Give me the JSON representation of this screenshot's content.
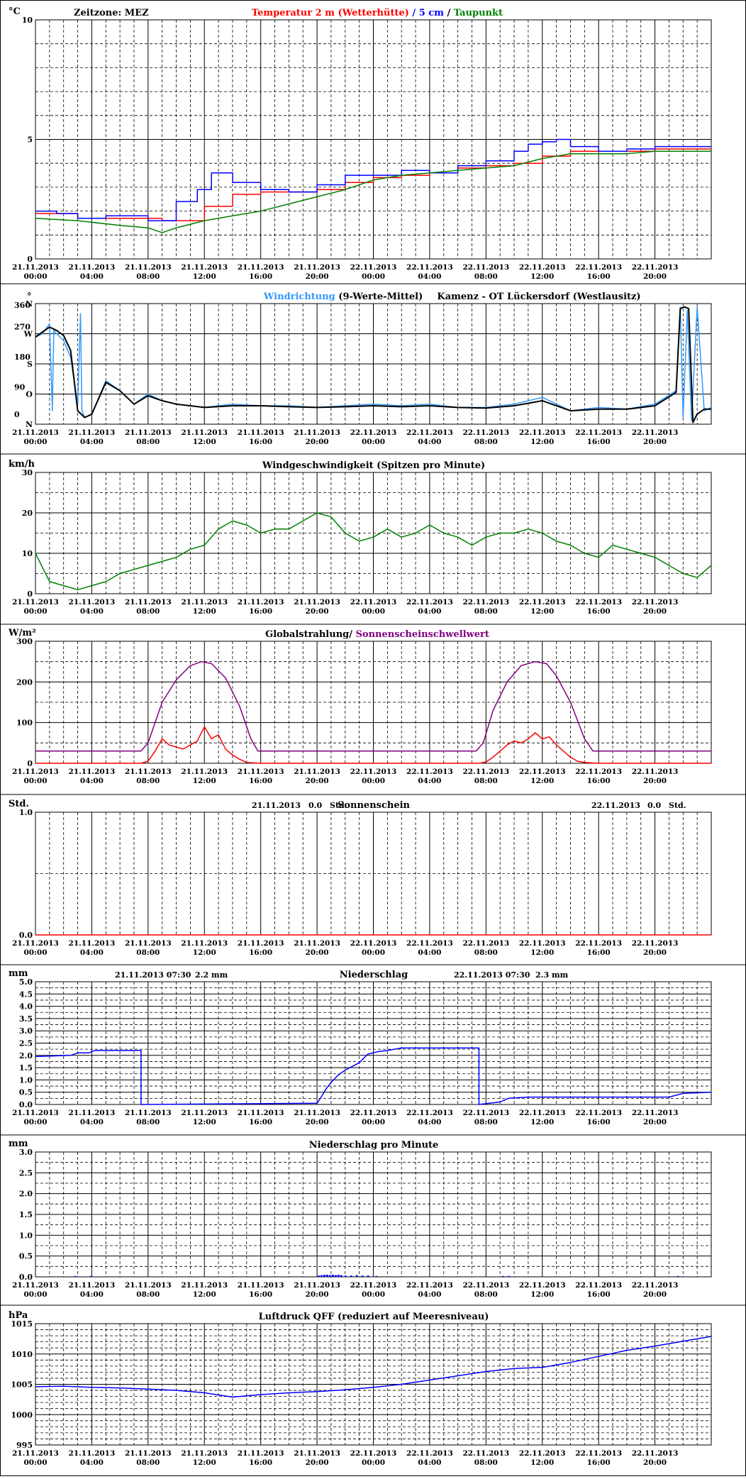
{
  "x_tick_labels": [
    [
      "21.11.2013",
      "00:00"
    ],
    [
      "21.11.2013",
      "04:00"
    ],
    [
      "21.11.2013",
      "08:00"
    ],
    [
      "21.11.2013",
      "12:00"
    ],
    [
      "21.11.2013",
      "16:00"
    ],
    [
      "21.11.2013",
      "20:00"
    ],
    [
      "22.11.2013",
      "00:00"
    ],
    [
      "22.11.2013",
      "04:00"
    ],
    [
      "22.11.2013",
      "08:00"
    ],
    [
      "22.11.2013",
      "12:00"
    ],
    [
      "22.11.2013",
      "16:00"
    ],
    [
      "22.11.2013",
      "20:00"
    ]
  ],
  "colors": {
    "temp_red": "#ff0000",
    "temp_blue": "#0000ff",
    "dew_green": "#008000",
    "wind_dir_blue": "#3399ff",
    "wind_dir_black": "#000000",
    "wind_speed": "#008000",
    "radiation": "#ff0000",
    "threshold": "#800080",
    "sunshine": "#ff0000",
    "precip": "#0000ff",
    "pressure": "#0000ff"
  },
  "chart_data": [
    {
      "id": "temperature",
      "type": "line",
      "unit": "°C",
      "zone_label": "Zeitzone: MEZ",
      "title_parts": [
        {
          "text": "Temperatur 2 m (Wetterhütte)",
          "color": "#ff0000"
        },
        {
          "text": "  /  ",
          "color": "#0000ff"
        },
        {
          "text": "5 cm",
          "color": "#0000ff"
        },
        {
          "text": " / ",
          "color": "#000000"
        },
        {
          "text": "Taupunkt",
          "color": "#008000"
        }
      ],
      "ylim": [
        0,
        10
      ],
      "y_ticks": [
        "0",
        "5",
        "10"
      ],
      "y_tick_values": [
        0,
        5,
        10
      ],
      "grid_minor": [
        1,
        2,
        3,
        4,
        6,
        7,
        8,
        9
      ],
      "x_hours": [
        0,
        48
      ],
      "series": [
        {
          "name": "Temperatur 2 m (Wetterhütte)",
          "color": "#ff0000",
          "step": true,
          "x": [
            0,
            3,
            6,
            9,
            12,
            14,
            16,
            18,
            20,
            22,
            24,
            26,
            28,
            30,
            32,
            34,
            36,
            38,
            40,
            42,
            44,
            46,
            48
          ],
          "y": [
            1.9,
            1.7,
            1.7,
            1.6,
            2.2,
            2.7,
            2.8,
            2.8,
            2.9,
            3.2,
            3.4,
            3.5,
            3.6,
            3.8,
            3.9,
            4.0,
            4.3,
            4.5,
            4.5,
            4.5,
            4.6,
            4.6,
            4.6
          ]
        },
        {
          "name": "5 cm",
          "color": "#0000ff",
          "step": true,
          "x": [
            0,
            1.5,
            3,
            5,
            8,
            10,
            11.5,
            12.5,
            14,
            16,
            18,
            20,
            22,
            24,
            26,
            28,
            30,
            32,
            34,
            35,
            36,
            37,
            38,
            40,
            42,
            44,
            46,
            48
          ],
          "y": [
            2.0,
            1.9,
            1.7,
            1.8,
            1.6,
            2.4,
            2.9,
            3.6,
            3.2,
            2.9,
            2.8,
            3.1,
            3.5,
            3.5,
            3.7,
            3.6,
            3.9,
            4.1,
            4.5,
            4.8,
            4.9,
            5.0,
            4.7,
            4.5,
            4.6,
            4.7,
            4.7,
            4.7
          ]
        },
        {
          "name": "Taupunkt",
          "color": "#008000",
          "step": false,
          "x": [
            0,
            3,
            6,
            8,
            9,
            10,
            12,
            14,
            16,
            18,
            20,
            22,
            24,
            26,
            28,
            30,
            32,
            34,
            36,
            38,
            40,
            42,
            44,
            46,
            48
          ],
          "y": [
            1.7,
            1.6,
            1.4,
            1.3,
            1.1,
            1.3,
            1.6,
            1.8,
            2.0,
            2.3,
            2.6,
            2.9,
            3.3,
            3.5,
            3.6,
            3.7,
            3.8,
            3.9,
            4.2,
            4.4,
            4.4,
            4.4,
            4.5,
            4.5,
            4.5
          ]
        }
      ]
    },
    {
      "id": "wind_direction",
      "type": "line",
      "title_parts": [
        {
          "text": "Windrichtung",
          "color": "#3399ff"
        },
        {
          "text": " (9-Werte-Mittel)",
          "color": "#000000"
        }
      ],
      "station": "Kamenz - OT Lückersdorf (Westlausitz)",
      "ylim": [
        0,
        360
      ],
      "y_ticks": [
        "N",
        "O",
        "S",
        "W",
        "N"
      ],
      "y_tick_values": [
        0,
        90,
        180,
        270,
        360
      ],
      "y_ticks_num": [
        "0",
        "90",
        "180",
        "270",
        "360"
      ],
      "corner_label": "°",
      "x_hours": [
        0,
        48
      ],
      "series": [
        {
          "name": "Windrichtung",
          "color": "#3399ff",
          "x": [
            0,
            0.5,
            1,
            1.2,
            1.3,
            1.5,
            2,
            2.5,
            3,
            3.2,
            3.3,
            3.5,
            4,
            5,
            6,
            7,
            8,
            9,
            10,
            12,
            14,
            16,
            18,
            20,
            22,
            24,
            26,
            28,
            30,
            32,
            34,
            36,
            38,
            40,
            42,
            44,
            45.5,
            45.8,
            46,
            46.3,
            46.6,
            47,
            47.5,
            48
          ],
          "y": [
            260,
            270,
            300,
            40,
            280,
            270,
            250,
            200,
            60,
            330,
            40,
            20,
            30,
            130,
            100,
            60,
            90,
            70,
            60,
            50,
            60,
            55,
            55,
            50,
            55,
            60,
            55,
            60,
            50,
            50,
            60,
            80,
            40,
            50,
            45,
            60,
            100,
            350,
            20,
            340,
            10,
            350,
            40,
            50
          ]
        },
        {
          "name": "9-Werte-Mittel",
          "color": "#000000",
          "x": [
            0,
            0.5,
            1,
            1.5,
            2,
            2.5,
            3,
            3.5,
            4,
            5,
            6,
            7,
            8,
            9,
            10,
            12,
            14,
            16,
            18,
            20,
            22,
            24,
            26,
            28,
            30,
            32,
            34,
            36,
            38,
            40,
            42,
            44,
            45.5,
            45.8,
            46.1,
            46.4,
            46.7,
            47,
            47.5,
            48
          ],
          "y": [
            260,
            275,
            290,
            280,
            265,
            220,
            40,
            20,
            30,
            125,
            100,
            60,
            85,
            70,
            60,
            50,
            55,
            55,
            52,
            50,
            52,
            55,
            52,
            55,
            50,
            48,
            55,
            70,
            40,
            45,
            45,
            55,
            95,
            345,
            350,
            345,
            5,
            30,
            45,
            45
          ]
        }
      ]
    },
    {
      "id": "wind_speed",
      "type": "line",
      "unit": "km/h",
      "title": "Windgeschwindigkeit (Spitzen pro Minute)",
      "ylim": [
        0,
        30
      ],
      "y_ticks": [
        "0",
        "10",
        "20",
        "30"
      ],
      "y_tick_values": [
        0,
        10,
        20,
        30
      ],
      "grid_minor": [
        5,
        15,
        25
      ],
      "x_hours": [
        0,
        48
      ],
      "series": [
        {
          "name": "Windgeschwindigkeit",
          "color": "#008000",
          "x": [
            0,
            1,
            2,
            3,
            4,
            5,
            6,
            7,
            8,
            9,
            10,
            11,
            12,
            13,
            14,
            15,
            16,
            17,
            18,
            19,
            20,
            21,
            22,
            23,
            24,
            25,
            26,
            27,
            28,
            29,
            30,
            31,
            32,
            33,
            34,
            35,
            36,
            37,
            38,
            39,
            40,
            41,
            42,
            43,
            44,
            45,
            46,
            47,
            48
          ],
          "y": [
            10,
            3,
            2,
            1,
            2,
            3,
            5,
            6,
            7,
            8,
            9,
            11,
            12,
            16,
            18,
            17,
            15,
            16,
            16,
            18,
            20,
            19,
            15,
            13,
            14,
            16,
            14,
            15,
            17,
            15,
            14,
            12,
            14,
            15,
            15,
            16,
            15,
            13,
            12,
            10,
            9,
            12,
            11,
            10,
            9,
            7,
            5,
            4,
            7
          ]
        }
      ]
    },
    {
      "id": "radiation",
      "type": "line",
      "unit": "W/m²",
      "title_parts": [
        {
          "text": "Globalstrahlung/ ",
          "color": "#000000"
        },
        {
          "text": "Sonnenscheinschwellwert",
          "color": "#800080"
        }
      ],
      "ylim": [
        0,
        300
      ],
      "y_ticks": [
        "0",
        "100",
        "200",
        "300"
      ],
      "y_tick_values": [
        0,
        100,
        200,
        300
      ],
      "grid_minor": [
        50,
        150,
        250
      ],
      "x_hours": [
        0,
        48
      ],
      "series": [
        {
          "name": "Globalstrahlung",
          "color": "#ff0000",
          "x": [
            0,
            7.5,
            8,
            8.5,
            9,
            9.5,
            10,
            10.5,
            11,
            11.5,
            12,
            12.5,
            13,
            13.5,
            14,
            14.5,
            15,
            16,
            31.5,
            32,
            32.5,
            33,
            33.5,
            34,
            34.5,
            35,
            35.5,
            36,
            36.5,
            37,
            37.5,
            38,
            38.5,
            39,
            40,
            48
          ],
          "y": [
            0,
            0,
            5,
            30,
            60,
            45,
            40,
            35,
            45,
            55,
            90,
            60,
            70,
            35,
            20,
            10,
            2,
            0,
            0,
            3,
            15,
            30,
            45,
            55,
            50,
            60,
            75,
            60,
            65,
            45,
            30,
            15,
            5,
            2,
            0,
            0
          ]
        },
        {
          "name": "Sonnenscheinschwellwert",
          "color": "#800080",
          "x": [
            0,
            7.5,
            8,
            9,
            10,
            11,
            11.8,
            12.5,
            13.5,
            14.5,
            15.3,
            15.8,
            31.3,
            31.8,
            32.5,
            33.5,
            34.5,
            35.5,
            36.3,
            37,
            38,
            39,
            39.6,
            40,
            48
          ],
          "y": [
            30,
            30,
            50,
            150,
            205,
            240,
            250,
            245,
            210,
            140,
            60,
            30,
            30,
            50,
            130,
            200,
            240,
            250,
            245,
            215,
            150,
            60,
            30,
            30,
            30
          ]
        }
      ]
    },
    {
      "id": "sunshine",
      "type": "line",
      "unit": "Std.",
      "title": "Sonnenschein",
      "day_sums": [
        {
          "date": "21.11.2013",
          "value": "0.0",
          "unit": "Std."
        },
        {
          "date": "22.11.2013",
          "value": "0.0",
          "unit": "Std."
        }
      ],
      "ylim": [
        0,
        1
      ],
      "y_ticks": [
        "0.0",
        "1.0"
      ],
      "y_tick_values": [
        0,
        1
      ],
      "grid_minor": [
        0.5
      ],
      "x_hours": [
        0,
        48
      ],
      "series": [
        {
          "name": "Sonnenschein",
          "color": "#ff0000",
          "x": [
            0,
            48
          ],
          "y": [
            0,
            0
          ]
        }
      ]
    },
    {
      "id": "precipitation",
      "type": "line",
      "unit": "mm",
      "title": "Niederschlag",
      "day_sums": [
        {
          "date": "21.11.2013 07:30",
          "value": "2.2",
          "unit": "mm"
        },
        {
          "date": "22.11.2013 07:30",
          "value": "2.3",
          "unit": "mm"
        }
      ],
      "ylim": [
        0,
        5
      ],
      "y_ticks": [
        "0.0",
        "0.5",
        "1.0",
        "1.5",
        "2.0",
        "2.5",
        "3.0",
        "3.5",
        "4.0",
        "4.5",
        "5.0"
      ],
      "y_tick_values": [
        0,
        0.5,
        1,
        1.5,
        2,
        2.5,
        3,
        3.5,
        4,
        4.5,
        5
      ],
      "grid_minor": [
        0.25,
        0.75,
        1.25,
        1.75,
        2.25,
        2.75,
        3.25,
        3.75,
        4.25,
        4.75
      ],
      "x_hours": [
        0,
        48
      ],
      "series": [
        {
          "name": "Niederschlag",
          "color": "#0000ff",
          "x": [
            0,
            2.5,
            3,
            3.8,
            4.2,
            7.5,
            7.5,
            20,
            20.3,
            20.6,
            21,
            21.5,
            22,
            22.5,
            23,
            23.6,
            24.3,
            25,
            26,
            31.5,
            31.5,
            33,
            33.6,
            35,
            45,
            46,
            48
          ],
          "y": [
            1.95,
            2.0,
            2.1,
            2.1,
            2.2,
            2.2,
            0.0,
            0.05,
            0.3,
            0.6,
            0.9,
            1.2,
            1.4,
            1.55,
            1.7,
            2.05,
            2.15,
            2.2,
            2.3,
            2.3,
            0.0,
            0.1,
            0.25,
            0.3,
            0.3,
            0.45,
            0.5
          ]
        }
      ]
    },
    {
      "id": "precip_per_minute",
      "type": "bar",
      "unit": "mm",
      "title": "Niederschlag pro Minute",
      "ylim": [
        0,
        3
      ],
      "y_ticks": [
        "0.0",
        "0.5",
        "1.0",
        "1.5",
        "2.0",
        "2.5",
        "3.0"
      ],
      "y_tick_values": [
        0,
        0.5,
        1,
        1.5,
        2,
        2.5,
        3
      ],
      "grid_minor": [
        0.25,
        0.75,
        1.25,
        1.75,
        2.25,
        2.75
      ],
      "x_hours": [
        0,
        48
      ],
      "series": [
        {
          "name": "Niederschlag pro Minute",
          "color": "#0000ff",
          "x": [
            2.8,
            3.9,
            20.1,
            20.3,
            20.5,
            20.7,
            20.9,
            21.1,
            21.3,
            21.5,
            21.7,
            22.0,
            22.4,
            22.8,
            23.2,
            23.6,
            24.2,
            33.2,
            33.6,
            45.6
          ],
          "y": [
            0.02,
            0.02,
            0.03,
            0.04,
            0.05,
            0.05,
            0.04,
            0.05,
            0.04,
            0.05,
            0.04,
            0.03,
            0.03,
            0.04,
            0.03,
            0.03,
            0.02,
            0.02,
            0.02,
            0.02
          ]
        }
      ]
    },
    {
      "id": "pressure",
      "type": "line",
      "unit": "hPa",
      "title": "Luftdruck QFF (reduziert auf Meeresniveau)",
      "ylim": [
        995,
        1015
      ],
      "y_ticks": [
        "995",
        "1000",
        "1005",
        "1010",
        "1015"
      ],
      "y_tick_values": [
        995,
        1000,
        1005,
        1010,
        1015
      ],
      "grid_minor": [
        996,
        997,
        998,
        999,
        1001,
        1002,
        1003,
        1004,
        1006,
        1007,
        1008,
        1009,
        1011,
        1012,
        1013,
        1014
      ],
      "x_hours": [
        0,
        48
      ],
      "series": [
        {
          "name": "Luftdruck QFF",
          "color": "#0000ff",
          "x": [
            0,
            2,
            4,
            6,
            8,
            10,
            12,
            14,
            16,
            18,
            20,
            22,
            24,
            26,
            28,
            30,
            32,
            34,
            36,
            38,
            40,
            42,
            44,
            46,
            48
          ],
          "y": [
            1004.6,
            1004.7,
            1004.5,
            1004.4,
            1004.2,
            1004.0,
            1003.6,
            1002.9,
            1003.3,
            1003.6,
            1003.8,
            1004.1,
            1004.5,
            1005.0,
            1005.7,
            1006.4,
            1007.1,
            1007.6,
            1007.8,
            1008.6,
            1009.6,
            1010.6,
            1011.3,
            1012.1,
            1012.9
          ]
        }
      ]
    }
  ]
}
